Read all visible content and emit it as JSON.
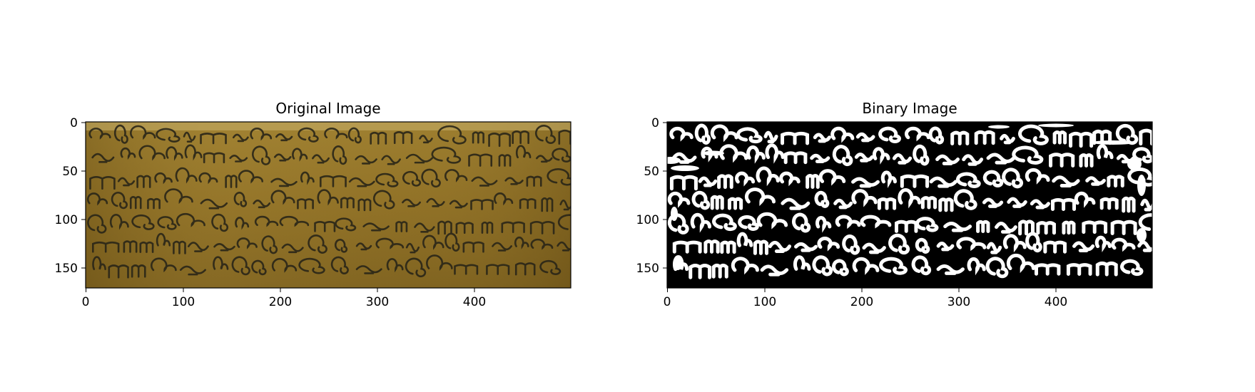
{
  "figure": {
    "panels": [
      {
        "title": "Original Image",
        "image_description_icon": "palm-leaf-manuscript-photo",
        "xticks": [
          "0",
          "100",
          "200",
          "300",
          "400"
        ],
        "yticks": [
          "0",
          "50",
          "100",
          "150"
        ]
      },
      {
        "title": "Binary Image",
        "image_description_icon": "binarized-manuscript-image",
        "xticks": [
          "0",
          "100",
          "200",
          "300",
          "400"
        ],
        "yticks": [
          "0",
          "50",
          "100",
          "150"
        ]
      }
    ],
    "colors": {
      "leaf_base": "#8a6a22",
      "leaf_light": "#a88a35",
      "ink": "#2a2618",
      "binary_bg": "#000000",
      "binary_fg": "#ffffff"
    }
  }
}
